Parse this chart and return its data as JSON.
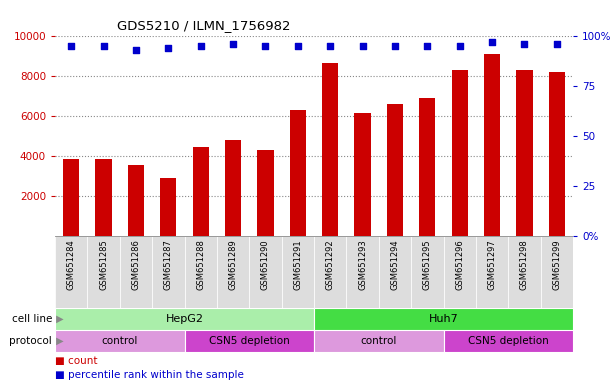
{
  "title": "GDS5210 / ILMN_1756982",
  "samples": [
    "GSM651284",
    "GSM651285",
    "GSM651286",
    "GSM651287",
    "GSM651288",
    "GSM651289",
    "GSM651290",
    "GSM651291",
    "GSM651292",
    "GSM651293",
    "GSM651294",
    "GSM651295",
    "GSM651296",
    "GSM651297",
    "GSM651298",
    "GSM651299"
  ],
  "bar_values": [
    3850,
    3850,
    3550,
    2900,
    4450,
    4800,
    4300,
    6300,
    8650,
    6150,
    6600,
    6900,
    8300,
    9100,
    8300,
    8200
  ],
  "percentile_values": [
    95,
    95,
    93,
    94,
    95,
    96,
    95,
    95,
    95,
    95,
    95,
    95,
    95,
    97,
    96,
    96
  ],
  "bar_color": "#cc0000",
  "dot_color": "#0000cc",
  "ylim_left": [
    0,
    10000
  ],
  "ylim_right": [
    0,
    100
  ],
  "yticks_left": [
    2000,
    4000,
    6000,
    8000,
    10000
  ],
  "yticks_right": [
    0,
    25,
    50,
    75,
    100
  ],
  "ytick_labels_right": [
    "0%",
    "25",
    "50",
    "75",
    "100%"
  ],
  "cell_line_groups": [
    {
      "label": "HepG2",
      "start": 0,
      "end": 7,
      "color": "#aaeea a"
    },
    {
      "label": "Huh7",
      "start": 8,
      "end": 15,
      "color": "#44dd44"
    }
  ],
  "protocol_groups": [
    {
      "label": "control",
      "start": 0,
      "end": 3,
      "color": "#dd99dd"
    },
    {
      "label": "CSN5 depletion",
      "start": 4,
      "end": 7,
      "color": "#cc44cc"
    },
    {
      "label": "control",
      "start": 8,
      "end": 11,
      "color": "#dd99dd"
    },
    {
      "label": "CSN5 depletion",
      "start": 12,
      "end": 15,
      "color": "#cc44cc"
    }
  ],
  "legend_count_color": "#cc0000",
  "legend_dot_color": "#0000cc",
  "background_color": "#ffffff",
  "grid_color": "#888888",
  "label_box_color": "#dddddd",
  "axis_color_left": "#cc0000",
  "axis_color_right": "#0000cc"
}
